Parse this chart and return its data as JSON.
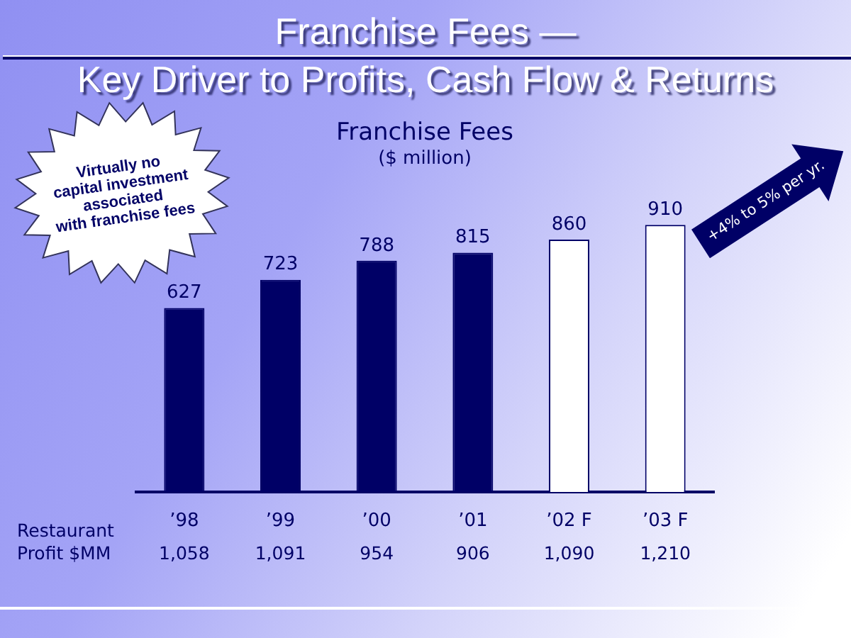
{
  "chart_data": {
    "type": "bar",
    "title": "Franchise Fees —\nKey Driver to Profits, Cash Flow & Returns",
    "subtitle": "Franchise Fees",
    "ylabel": "($ million)",
    "categories": [
      "’98",
      "’99",
      "’00",
      "’01",
      "’02 F",
      "’03 F"
    ],
    "values": [
      627,
      723,
      788,
      815,
      860,
      910
    ],
    "color": "#000066",
    "colors": [
      "#000066",
      "#000066",
      "#000066",
      "#000066",
      "#ffffff",
      "#ffffff"
    ],
    "data_labels": true,
    "grid": false,
    "legend": false,
    "tick_labels": "x",
    "annotations": [
      "Virtually no\ncapital investment\nassociated\nwith franchise fees",
      "+4% to 5% per yr.",
      "Restaurant Profit $MM",
      "1,058",
      "1,091",
      "954",
      "906",
      "1,090",
      "1,210"
    ]
  }
}
